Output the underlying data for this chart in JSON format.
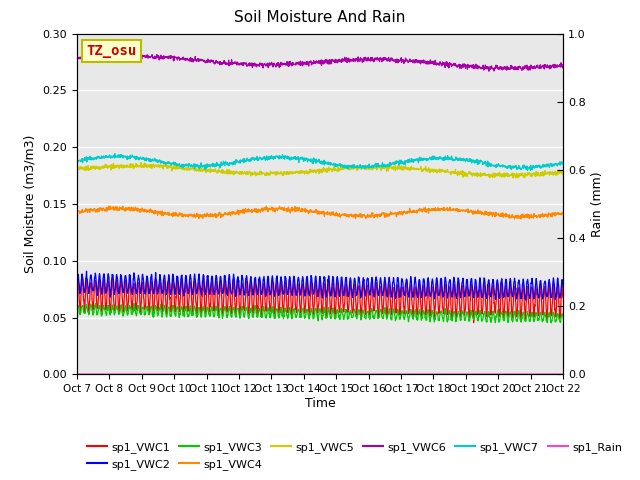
{
  "title": "Soil Moisture And Rain",
  "xlabel": "Time",
  "ylabel_left": "Soil Moisture (m3/m3)",
  "ylabel_right": "Rain (mm)",
  "x_ticks": [
    "Oct 7",
    "Oct 8",
    "Oct 9",
    "Oct 10",
    "Oct 11",
    "Oct 12",
    "Oct 13",
    "Oct 14",
    "Oct 15",
    "Oct 16",
    "Oct 17",
    "Oct 18",
    "Oct 19",
    "Oct 20",
    "Oct 21",
    "Oct 22"
  ],
  "ylim_left": [
    0.0,
    0.3
  ],
  "ylim_right": [
    0.0,
    1.0
  ],
  "n_points": 1500,
  "annotation_text": "TZ_osu",
  "annotation_bg": "#ffffcc",
  "annotation_border": "#bbbb00",
  "annotation_text_color": "#cc0000",
  "bg_color": "#e8e8e8",
  "series_order": [
    "sp1_VWC1",
    "sp1_VWC2",
    "sp1_VWC3",
    "sp1_VWC4",
    "sp1_VWC5",
    "sp1_VWC6",
    "sp1_VWC7",
    "sp1_Rain"
  ],
  "series": {
    "sp1_VWC1": {
      "color": "#ff0000",
      "base": 0.07,
      "amp": 0.013,
      "freq": 15.0,
      "trend": -0.006,
      "noise": 0.002,
      "ax": "left"
    },
    "sp1_VWC2": {
      "color": "#0000ff",
      "base": 0.08,
      "amp": 0.008,
      "freq": 15.0,
      "trend": -0.005,
      "noise": 0.001,
      "ax": "left"
    },
    "sp1_VWC3": {
      "color": "#00cc00",
      "base": 0.057,
      "amp": 0.004,
      "freq": 15.0,
      "trend": -0.007,
      "noise": 0.001,
      "ax": "left"
    },
    "sp1_VWC4": {
      "color": "#ff8800",
      "base": 0.143,
      "amp": 0.003,
      "freq": 3.0,
      "trend": -0.001,
      "noise": 0.001,
      "ax": "left"
    },
    "sp1_VWC5": {
      "color": "#cccc00",
      "base": 0.181,
      "amp": 0.003,
      "freq": 2.0,
      "trend": -0.003,
      "noise": 0.001,
      "ax": "left"
    },
    "sp1_VWC6": {
      "color": "#aa00aa",
      "base": 0.278,
      "amp": 0.003,
      "freq": 2.0,
      "trend": -0.006,
      "noise": 0.001,
      "ax": "left"
    },
    "sp1_VWC7": {
      "color": "#00cccc",
      "base": 0.188,
      "amp": 0.004,
      "freq": 3.0,
      "trend": -0.002,
      "noise": 0.001,
      "ax": "left"
    },
    "sp1_Rain": {
      "color": "#ff44bb",
      "base": 0.0,
      "amp": 0.0,
      "freq": 0.0,
      "trend": 0.0,
      "noise": 0.0,
      "ax": "right"
    }
  }
}
